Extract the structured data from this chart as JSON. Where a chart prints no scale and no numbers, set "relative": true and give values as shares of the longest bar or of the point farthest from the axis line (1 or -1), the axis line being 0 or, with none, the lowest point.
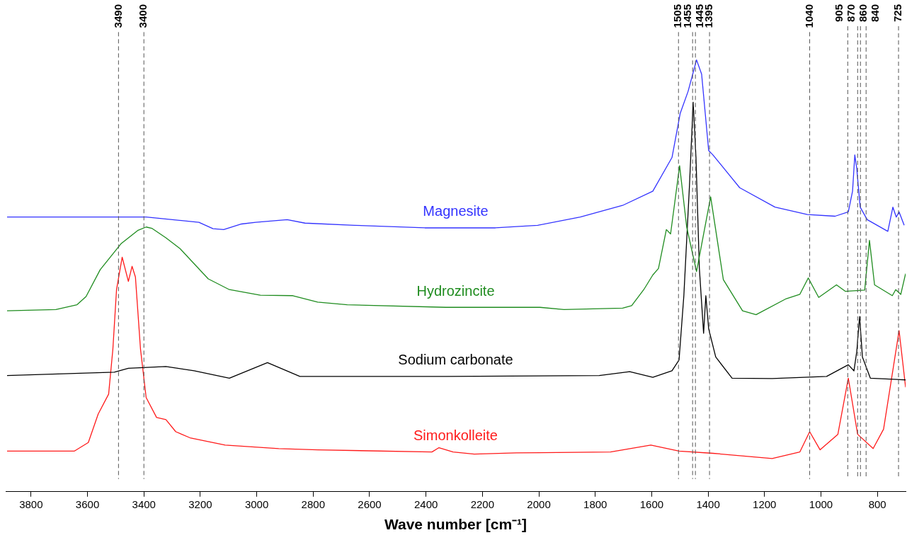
{
  "chart_data": {
    "type": "line",
    "xlabel": "Wave number [cm⁻¹]",
    "relative": true,
    "xlim": [
      3890,
      700
    ],
    "xticks": [
      3800,
      3600,
      3400,
      3200,
      3000,
      2800,
      2600,
      2400,
      2200,
      2000,
      1800,
      1600,
      1400,
      1200,
      1000,
      800
    ],
    "grid": false,
    "legend": false,
    "marker": "none",
    "line_style": "solid",
    "tick_labels": "x",
    "series": [
      {
        "name": "Magnesite",
        "color": "#3333ff",
        "x": [
          3885,
          3392,
          3330,
          3205,
          3155,
          3117,
          3054,
          3004,
          2892,
          2829,
          2654,
          2404,
          2154,
          2004,
          1853,
          1703,
          1596,
          1528,
          1499,
          1471,
          1441,
          1423,
          1398,
          1383,
          1288,
          1163,
          1048,
          950,
          903,
          888,
          880,
          873,
          861,
          836,
          763,
          745,
          733,
          723,
          705
        ],
        "values": [
          0.636,
          0.636,
          0.632,
          0.624,
          0.609,
          0.607,
          0.62,
          0.624,
          0.63,
          0.622,
          0.617,
          0.611,
          0.611,
          0.617,
          0.636,
          0.663,
          0.696,
          0.774,
          0.876,
          0.927,
          1.0,
          0.967,
          0.79,
          0.78,
          0.704,
          0.659,
          0.642,
          0.638,
          0.648,
          0.696,
          0.78,
          0.748,
          0.659,
          0.63,
          0.603,
          0.659,
          0.636,
          0.648,
          0.617
        ]
      },
      {
        "name": "Hydrozincite",
        "color": "#1f8c1f",
        "x": [
          3885,
          3712,
          3637,
          3605,
          3555,
          3480,
          3422,
          3392,
          3372,
          3322,
          3272,
          3172,
          3097,
          2987,
          2872,
          2784,
          2679,
          2329,
          1996,
          1911,
          1703,
          1671,
          1628,
          1596,
          1576,
          1548,
          1533,
          1501,
          1476,
          1441,
          1391,
          1346,
          1278,
          1230,
          1123,
          1075,
          1045,
          1008,
          945,
          913,
          845,
          828,
          810,
          747,
          735,
          717,
          700
        ],
        "values": [
          0.419,
          0.422,
          0.433,
          0.452,
          0.514,
          0.575,
          0.605,
          0.613,
          0.61,
          0.588,
          0.563,
          0.493,
          0.468,
          0.455,
          0.454,
          0.439,
          0.433,
          0.427,
          0.427,
          0.422,
          0.425,
          0.431,
          0.468,
          0.502,
          0.517,
          0.607,
          0.597,
          0.755,
          0.613,
          0.51,
          0.683,
          0.491,
          0.419,
          0.41,
          0.447,
          0.457,
          0.495,
          0.45,
          0.479,
          0.464,
          0.467,
          0.582,
          0.479,
          0.454,
          0.468,
          0.457,
          0.505
        ]
      },
      {
        "name": "Sodium carbonate",
        "color": "#000000",
        "x": [
          3885,
          3505,
          3455,
          3322,
          3222,
          3097,
          2962,
          2847,
          2329,
          1786,
          1678,
          1596,
          1528,
          1503,
          1486,
          1466,
          1453,
          1443,
          1431,
          1416,
          1408,
          1398,
          1373,
          1315,
          1173,
          980,
          903,
          883,
          873,
          863,
          853,
          825,
          700
        ],
        "values": [
          0.269,
          0.277,
          0.286,
          0.29,
          0.28,
          0.263,
          0.299,
          0.267,
          0.267,
          0.269,
          0.278,
          0.265,
          0.28,
          0.305,
          0.454,
          0.71,
          0.902,
          0.774,
          0.517,
          0.367,
          0.454,
          0.377,
          0.312,
          0.263,
          0.262,
          0.267,
          0.294,
          0.28,
          0.325,
          0.406,
          0.312,
          0.263,
          0.259
        ]
      },
      {
        "name": "Simonkolleite",
        "color": "#ff1a1a",
        "x": [
          3885,
          3647,
          3597,
          3562,
          3525,
          3510,
          3497,
          3477,
          3455,
          3442,
          3430,
          3412,
          3392,
          3355,
          3322,
          3287,
          3237,
          3112,
          2922,
          2784,
          2379,
          2354,
          2304,
          2229,
          2079,
          1746,
          1603,
          1503,
          1383,
          1173,
          1075,
          1040,
          1003,
          940,
          903,
          870,
          815,
          778,
          723,
          700
        ],
        "values": [
          0.094,
          0.094,
          0.114,
          0.18,
          0.226,
          0.33,
          0.468,
          0.543,
          0.487,
          0.522,
          0.497,
          0.33,
          0.218,
          0.172,
          0.167,
          0.139,
          0.125,
          0.108,
          0.1,
          0.097,
          0.092,
          0.102,
          0.092,
          0.087,
          0.09,
          0.092,
          0.108,
          0.094,
          0.089,
          0.077,
          0.092,
          0.139,
          0.097,
          0.133,
          0.263,
          0.133,
          0.1,
          0.145,
          0.373,
          0.242
        ]
      }
    ],
    "ref_lines": [
      {
        "axis": "x",
        "value": 3490,
        "label": "3490",
        "color": "#555555",
        "line_style": "dashed"
      },
      {
        "axis": "x",
        "value": 3400,
        "label": "3400",
        "color": "#555555",
        "line_style": "dashed"
      },
      {
        "axis": "x",
        "value": 1505,
        "label": "1505",
        "color": "#555555",
        "line_style": "dashed"
      },
      {
        "axis": "x",
        "value": 1455,
        "label": "1455",
        "color": "#555555",
        "line_style": "dashed"
      },
      {
        "axis": "x",
        "value": 1445,
        "label": "1445",
        "color": "#555555",
        "line_style": "dashed"
      },
      {
        "axis": "x",
        "value": 1395,
        "label": "1395",
        "color": "#555555",
        "line_style": "dashed"
      },
      {
        "axis": "x",
        "value": 1040,
        "label": "1040",
        "color": "#555555",
        "line_style": "dashed"
      },
      {
        "axis": "x",
        "value": 905,
        "label": "905",
        "color": "#555555",
        "line_style": "dashed"
      },
      {
        "axis": "x",
        "value": 870,
        "label": "870",
        "color": "#555555",
        "line_style": "dashed"
      },
      {
        "axis": "x",
        "value": 860,
        "label": "860",
        "color": "#555555",
        "line_style": "dashed"
      },
      {
        "axis": "x",
        "value": 840,
        "label": "840",
        "color": "#555555",
        "line_style": "dashed"
      },
      {
        "axis": "x",
        "value": 725,
        "label": "725",
        "color": "#555555",
        "line_style": "dashed"
      }
    ]
  }
}
